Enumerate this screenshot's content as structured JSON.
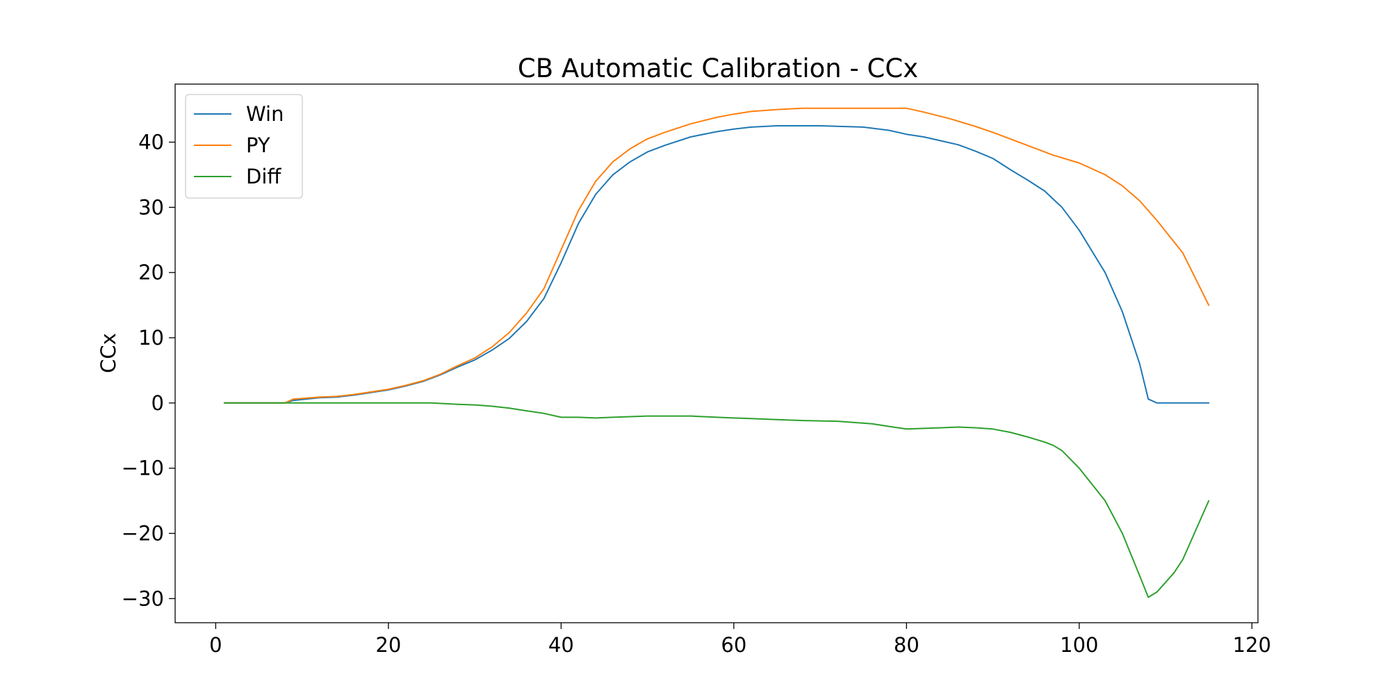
{
  "chart_data": {
    "type": "line",
    "title": "CB Automatic Calibration - CCx",
    "xlabel": "",
    "ylabel": "CCx",
    "xlim": [
      -4.7,
      120.7
    ],
    "ylim": [
      -33.7,
      48.9
    ],
    "xticks": [
      0,
      20,
      40,
      60,
      80,
      100,
      120
    ],
    "yticks": [
      -30,
      -20,
      -10,
      0,
      10,
      20,
      30,
      40
    ],
    "xtick_labels": [
      "0",
      "20",
      "40",
      "60",
      "80",
      "100",
      "120"
    ],
    "ytick_labels": [
      "−30",
      "−20",
      "−10",
      "0",
      "10",
      "20",
      "30",
      "40"
    ],
    "grid": false,
    "legend_position": "top-left",
    "series": [
      {
        "name": "Win",
        "color": "#1f77b4",
        "points": [
          [
            1,
            0
          ],
          [
            8,
            0
          ],
          [
            9,
            0.4
          ],
          [
            12,
            0.8
          ],
          [
            14,
            0.9
          ],
          [
            16,
            1.2
          ],
          [
            18,
            1.6
          ],
          [
            20,
            2.0
          ],
          [
            22,
            2.6
          ],
          [
            24,
            3.3
          ],
          [
            26,
            4.3
          ],
          [
            28,
            5.5
          ],
          [
            30,
            6.6
          ],
          [
            32,
            8.1
          ],
          [
            34,
            9.9
          ],
          [
            36,
            12.5
          ],
          [
            38,
            16.0
          ],
          [
            40,
            21.5
          ],
          [
            42,
            27.5
          ],
          [
            44,
            32.0
          ],
          [
            46,
            35.0
          ],
          [
            48,
            37.0
          ],
          [
            50,
            38.5
          ],
          [
            52,
            39.5
          ],
          [
            55,
            40.8
          ],
          [
            58,
            41.6
          ],
          [
            60,
            42.0
          ],
          [
            62,
            42.3
          ],
          [
            65,
            42.5
          ],
          [
            70,
            42.5
          ],
          [
            75,
            42.3
          ],
          [
            78,
            41.8
          ],
          [
            80,
            41.2
          ],
          [
            82,
            40.8
          ],
          [
            84,
            40.2
          ],
          [
            86,
            39.6
          ],
          [
            88,
            38.6
          ],
          [
            90,
            37.5
          ],
          [
            92,
            35.8
          ],
          [
            94,
            34.2
          ],
          [
            96,
            32.5
          ],
          [
            98,
            30.0
          ],
          [
            100,
            26.5
          ],
          [
            103,
            20.0
          ],
          [
            105,
            14.0
          ],
          [
            107,
            6.0
          ],
          [
            108,
            0.6
          ],
          [
            109,
            0
          ],
          [
            115,
            0
          ]
        ]
      },
      {
        "name": "PY",
        "color": "#ff7f0e",
        "points": [
          [
            1,
            0
          ],
          [
            8,
            0
          ],
          [
            9,
            0.6
          ],
          [
            12,
            0.9
          ],
          [
            14,
            1.0
          ],
          [
            16,
            1.3
          ],
          [
            18,
            1.7
          ],
          [
            20,
            2.1
          ],
          [
            22,
            2.7
          ],
          [
            24,
            3.4
          ],
          [
            26,
            4.4
          ],
          [
            28,
            5.7
          ],
          [
            30,
            6.9
          ],
          [
            32,
            8.6
          ],
          [
            34,
            10.8
          ],
          [
            36,
            13.8
          ],
          [
            38,
            17.5
          ],
          [
            40,
            23.5
          ],
          [
            42,
            29.5
          ],
          [
            44,
            34.0
          ],
          [
            46,
            37.0
          ],
          [
            48,
            39.0
          ],
          [
            50,
            40.5
          ],
          [
            52,
            41.5
          ],
          [
            55,
            42.8
          ],
          [
            58,
            43.8
          ],
          [
            60,
            44.3
          ],
          [
            62,
            44.7
          ],
          [
            65,
            45.0
          ],
          [
            68,
            45.2
          ],
          [
            75,
            45.2
          ],
          [
            80,
            45.2
          ],
          [
            82,
            44.6
          ],
          [
            85,
            43.6
          ],
          [
            88,
            42.4
          ],
          [
            90,
            41.5
          ],
          [
            92,
            40.5
          ],
          [
            94,
            39.5
          ],
          [
            96,
            38.5
          ],
          [
            97,
            38.0
          ],
          [
            98,
            37.6
          ],
          [
            100,
            36.8
          ],
          [
            103,
            35.0
          ],
          [
            105,
            33.3
          ],
          [
            107,
            31.0
          ],
          [
            109,
            28.0
          ],
          [
            112,
            23.0
          ],
          [
            115,
            15.0
          ]
        ]
      },
      {
        "name": "Diff",
        "color": "#2ca02c",
        "points": [
          [
            1,
            0
          ],
          [
            8,
            0
          ],
          [
            12,
            0
          ],
          [
            15,
            0
          ],
          [
            20,
            0
          ],
          [
            25,
            0
          ],
          [
            28,
            -0.2
          ],
          [
            30,
            -0.3
          ],
          [
            32,
            -0.5
          ],
          [
            34,
            -0.8
          ],
          [
            36,
            -1.2
          ],
          [
            38,
            -1.6
          ],
          [
            40,
            -2.2
          ],
          [
            42,
            -2.2
          ],
          [
            44,
            -2.3
          ],
          [
            46,
            -2.2
          ],
          [
            48,
            -2.1
          ],
          [
            50,
            -2.0
          ],
          [
            55,
            -2.0
          ],
          [
            58,
            -2.2
          ],
          [
            60,
            -2.3
          ],
          [
            62,
            -2.4
          ],
          [
            64,
            -2.5
          ],
          [
            68,
            -2.7
          ],
          [
            72,
            -2.8
          ],
          [
            76,
            -3.2
          ],
          [
            78,
            -3.6
          ],
          [
            80,
            -4.0
          ],
          [
            82,
            -3.9
          ],
          [
            84,
            -3.8
          ],
          [
            86,
            -3.7
          ],
          [
            88,
            -3.8
          ],
          [
            90,
            -4.0
          ],
          [
            92,
            -4.5
          ],
          [
            94,
            -5.2
          ],
          [
            96,
            -6.0
          ],
          [
            97,
            -6.5
          ],
          [
            98,
            -7.3
          ],
          [
            100,
            -10.0
          ],
          [
            103,
            -15.0
          ],
          [
            105,
            -20.0
          ],
          [
            107,
            -26.5
          ],
          [
            108,
            -29.8
          ],
          [
            109,
            -29.0
          ],
          [
            111,
            -26.0
          ],
          [
            112,
            -24.0
          ],
          [
            115,
            -15.0
          ]
        ]
      }
    ]
  }
}
